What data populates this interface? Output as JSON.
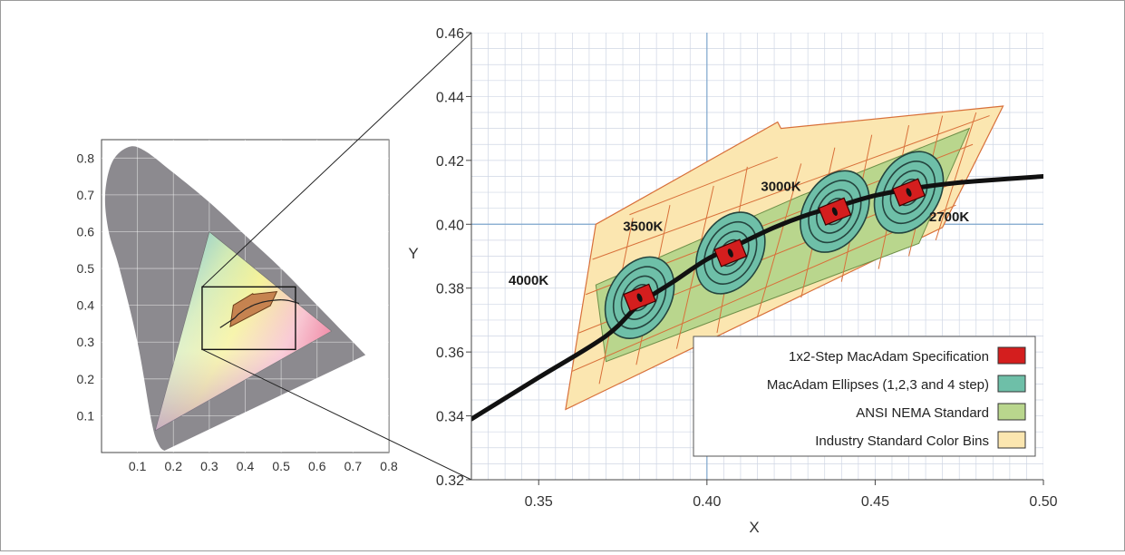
{
  "chart_data": [
    {
      "type": "scatter",
      "panel": "cie-1931-chromaticity-overview",
      "xlim": [
        0,
        0.8
      ],
      "ylim": [
        0,
        0.85
      ],
      "x_ticks": [
        "0.1",
        "0.2",
        "0.3",
        "0.4",
        "0.5",
        "0.6",
        "0.7",
        "0.8"
      ],
      "y_ticks": [
        "0.1",
        "0.2",
        "0.3",
        "0.4",
        "0.5",
        "0.6",
        "0.7",
        "0.8"
      ],
      "grid": true,
      "spectral_locus": [
        [
          0.175,
          0.005
        ],
        [
          0.16,
          0.02
        ],
        [
          0.14,
          0.08
        ],
        [
          0.1,
          0.3
        ],
        [
          0.05,
          0.5
        ],
        [
          0.02,
          0.6
        ],
        [
          0.01,
          0.7
        ],
        [
          0.03,
          0.79
        ],
        [
          0.075,
          0.83
        ],
        [
          0.12,
          0.82
        ],
        [
          0.2,
          0.76
        ],
        [
          0.3,
          0.68
        ],
        [
          0.4,
          0.59
        ],
        [
          0.5,
          0.5
        ],
        [
          0.6,
          0.4
        ],
        [
          0.735,
          0.265
        ]
      ],
      "gamut_triangle": [
        [
          0.64,
          0.33
        ],
        [
          0.3,
          0.6
        ],
        [
          0.15,
          0.06
        ]
      ],
      "zoom_box": {
        "x": [
          0.28,
          0.54
        ],
        "y": [
          0.28,
          0.45
        ]
      },
      "colors": {
        "locus_fill": "#8c8a8f",
        "box": "#111111"
      }
    },
    {
      "type": "scatter",
      "panel": "binning-detail",
      "xlabel": "X",
      "ylabel": "Y",
      "xlim": [
        0.33,
        0.5
      ],
      "ylim": [
        0.32,
        0.46
      ],
      "x_ticks": [
        "0.35",
        "0.40",
        "0.45",
        "0.50"
      ],
      "y_ticks": [
        "0.32",
        "0.34",
        "0.36",
        "0.38",
        "0.40",
        "0.42",
        "0.44",
        "0.46"
      ],
      "grid": true,
      "crosshair": {
        "x": 0.4,
        "y": 0.4
      },
      "planckian_locus": [
        [
          0.33,
          0.339
        ],
        [
          0.35,
          0.352
        ],
        [
          0.37,
          0.365
        ],
        [
          0.38,
          0.375
        ],
        [
          0.39,
          0.382
        ],
        [
          0.4,
          0.389
        ],
        [
          0.41,
          0.394
        ],
        [
          0.42,
          0.399
        ],
        [
          0.43,
          0.403
        ],
        [
          0.44,
          0.406
        ],
        [
          0.45,
          0.409
        ],
        [
          0.46,
          0.411
        ],
        [
          0.47,
          0.4125
        ],
        [
          0.48,
          0.4135
        ],
        [
          0.5,
          0.415
        ]
      ],
      "ccts": [
        {
          "label": "4000K",
          "x": 0.38,
          "y": 0.377,
          "label_x": 0.347,
          "label_y": 0.381
        },
        {
          "label": "3500K",
          "x": 0.407,
          "y": 0.391,
          "label_x": 0.381,
          "label_y": 0.398
        },
        {
          "label": "3000K",
          "x": 0.438,
          "y": 0.404,
          "label_x": 0.422,
          "label_y": 0.4105
        },
        {
          "label": "2700K",
          "x": 0.46,
          "y": 0.41,
          "label_x": 0.472,
          "label_y": 0.401
        }
      ],
      "industry_bins_region": [
        [
          0.367,
          0.4
        ],
        [
          0.421,
          0.432
        ],
        [
          0.422,
          0.43
        ],
        [
          0.488,
          0.437
        ],
        [
          0.47,
          0.399
        ],
        [
          0.358,
          0.342
        ]
      ],
      "ansi_nema_region": [
        [
          0.367,
          0.381
        ],
        [
          0.428,
          0.409
        ],
        [
          0.478,
          0.43
        ],
        [
          0.463,
          0.394
        ],
        [
          0.405,
          0.371
        ],
        [
          0.37,
          0.357
        ]
      ],
      "bin_grid_lines": [
        [
          [
            0.378,
            0.402
          ],
          [
            0.368,
            0.35
          ]
        ],
        [
          [
            0.389,
            0.406
          ],
          [
            0.379,
            0.356
          ]
        ],
        [
          [
            0.402,
            0.412
          ],
          [
            0.391,
            0.361
          ]
        ],
        [
          [
            0.412,
            0.418
          ],
          [
            0.403,
            0.366
          ]
        ],
        [
          [
            0.428,
            0.419
          ],
          [
            0.415,
            0.371
          ]
        ],
        [
          [
            0.438,
            0.424
          ],
          [
            0.428,
            0.377
          ]
        ],
        [
          [
            0.449,
            0.428
          ],
          [
            0.44,
            0.382
          ]
        ],
        [
          [
            0.46,
            0.431
          ],
          [
            0.451,
            0.386
          ]
        ],
        [
          [
            0.47,
            0.434
          ],
          [
            0.46,
            0.39
          ]
        ],
        [
          [
            0.48,
            0.435
          ],
          [
            0.468,
            0.395
          ]
        ],
        [
          [
            0.366,
            0.389
          ],
          [
            0.484,
            0.434
          ]
        ],
        [
          [
            0.364,
            0.378
          ],
          [
            0.479,
            0.425
          ]
        ],
        [
          [
            0.362,
            0.366
          ],
          [
            0.476,
            0.414
          ]
        ],
        [
          [
            0.36,
            0.354
          ],
          [
            0.474,
            0.406
          ]
        ],
        [
          [
            0.377,
            0.403
          ],
          [
            0.421,
            0.421
          ]
        ]
      ],
      "legend": {
        "placement": "bottom-right",
        "entries": [
          {
            "label": "1x2-Step MacAdam Specification",
            "color": "#d41e1e"
          },
          {
            "label": "MacAdam Ellipses (1,2,3 and 4 step)",
            "color": "#6ebfa8"
          },
          {
            "label": "ANSI NEMA Standard",
            "color": "#b9d68d"
          },
          {
            "label": "Industry Standard Color Bins",
            "color": "#fbe6b0"
          }
        ]
      },
      "colors": {
        "bins_fill": "#fbe6b0",
        "bins_stroke": "#d8703a",
        "ansi_fill": "#b9d68d",
        "ellipse_fill": "#6ebfa8",
        "ellipse_stroke": "#24443e",
        "spec_fill": "#d41e1e",
        "locus": "#111111",
        "grid": "#cfd6e4",
        "crosshair": "#7ea6cc"
      }
    }
  ]
}
